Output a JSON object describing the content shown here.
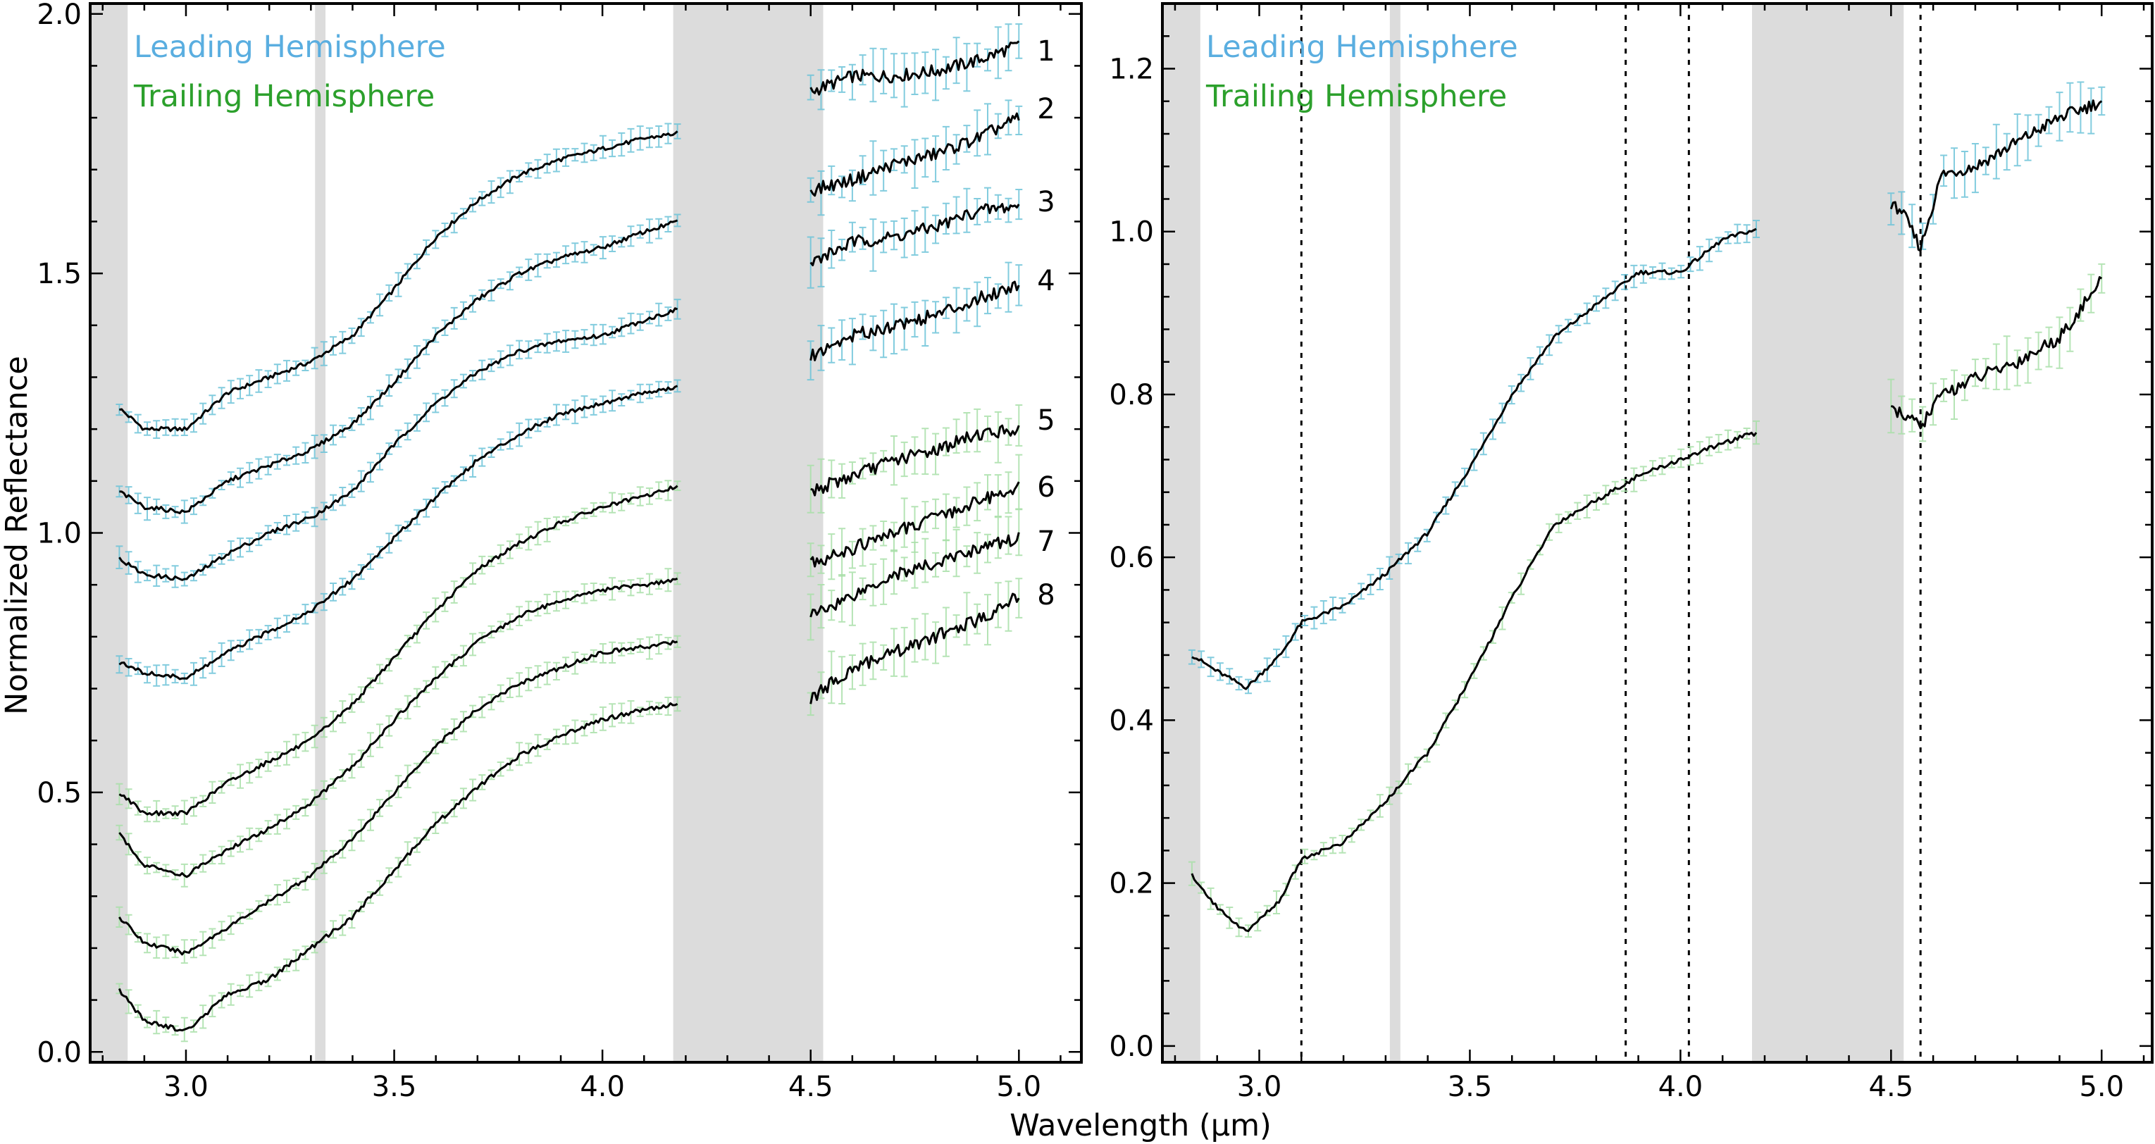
{
  "figure": {
    "xlabel": "Wavelength (μm)",
    "ylabel": "Normalized Reflectance"
  },
  "colors": {
    "leading": "#5aaee0",
    "trailing": "#2ca02c",
    "leading_error": "#6cc3d8",
    "trailing_error": "#a8dfa8",
    "spectrum_line": "#000000",
    "masked_region": "#dcdcdc"
  },
  "chart_data": [
    {
      "type": "line",
      "title": "",
      "xlabel": "Wavelength (μm)",
      "ylabel": "Normalized Reflectance",
      "xlim": [
        2.77,
        5.15
      ],
      "ylim": [
        -0.02,
        2.02
      ],
      "xticks": [
        "3.0",
        "3.5",
        "4.0",
        "4.5",
        "5.0"
      ],
      "yticks": [
        "0.0",
        "0.5",
        "1.0",
        "1.5",
        "2.0"
      ],
      "grid": false,
      "legend_position": "top-left",
      "legend": [
        "Leading Hemisphere",
        "Trailing Hemisphere"
      ],
      "masked_regions": [
        [
          2.77,
          2.86
        ],
        [
          3.31,
          3.335
        ],
        [
          4.17,
          4.53
        ]
      ],
      "series": [
        {
          "name": "1",
          "hemisphere": "leading",
          "x": [
            2.84,
            2.9,
            3.0,
            3.1,
            3.2,
            3.3,
            3.4,
            3.5,
            3.6,
            3.7,
            3.8,
            3.9,
            4.0,
            4.1,
            4.18,
            4.5,
            4.6,
            4.7,
            4.8,
            4.9,
            5.0
          ],
          "y": [
            1.24,
            1.2,
            1.2,
            1.27,
            1.3,
            1.33,
            1.38,
            1.47,
            1.57,
            1.64,
            1.69,
            1.72,
            1.74,
            1.76,
            1.77,
            1.85,
            1.88,
            1.88,
            1.89,
            1.91,
            1.94
          ]
        },
        {
          "name": "2",
          "hemisphere": "leading",
          "x": [
            2.84,
            2.9,
            3.0,
            3.1,
            3.2,
            3.3,
            3.4,
            3.5,
            3.6,
            3.7,
            3.8,
            3.9,
            4.0,
            4.1,
            4.18,
            4.5,
            4.6,
            4.7,
            4.8,
            4.9,
            5.0
          ],
          "y": [
            1.08,
            1.05,
            1.04,
            1.1,
            1.13,
            1.16,
            1.21,
            1.29,
            1.38,
            1.45,
            1.5,
            1.53,
            1.55,
            1.58,
            1.6,
            1.66,
            1.68,
            1.71,
            1.73,
            1.76,
            1.8
          ]
        },
        {
          "name": "3",
          "hemisphere": "leading",
          "x": [
            2.84,
            2.9,
            3.0,
            3.1,
            3.2,
            3.3,
            3.4,
            3.5,
            3.6,
            3.7,
            3.8,
            3.9,
            4.0,
            4.1,
            4.18,
            4.5,
            4.6,
            4.7,
            4.8,
            4.9,
            5.0
          ],
          "y": [
            0.95,
            0.92,
            0.91,
            0.96,
            1.0,
            1.03,
            1.08,
            1.17,
            1.25,
            1.31,
            1.35,
            1.37,
            1.38,
            1.41,
            1.43,
            1.52,
            1.56,
            1.57,
            1.59,
            1.62,
            1.63
          ]
        },
        {
          "name": "4",
          "hemisphere": "leading",
          "x": [
            2.84,
            2.9,
            3.0,
            3.1,
            3.2,
            3.3,
            3.4,
            3.5,
            3.6,
            3.7,
            3.8,
            3.9,
            4.0,
            4.1,
            4.18,
            4.5,
            4.6,
            4.7,
            4.8,
            4.9,
            5.0
          ],
          "y": [
            0.75,
            0.73,
            0.72,
            0.77,
            0.81,
            0.85,
            0.91,
            0.99,
            1.07,
            1.14,
            1.19,
            1.23,
            1.25,
            1.27,
            1.28,
            1.34,
            1.38,
            1.4,
            1.42,
            1.45,
            1.48
          ]
        },
        {
          "name": "5",
          "hemisphere": "trailing",
          "x": [
            2.84,
            2.9,
            3.0,
            3.1,
            3.2,
            3.3,
            3.4,
            3.5,
            3.6,
            3.7,
            3.8,
            3.9,
            4.0,
            4.1,
            4.18,
            4.5,
            4.6,
            4.7,
            4.8,
            4.9,
            5.0
          ],
          "y": [
            0.5,
            0.46,
            0.46,
            0.52,
            0.56,
            0.6,
            0.67,
            0.76,
            0.85,
            0.93,
            0.98,
            1.02,
            1.05,
            1.07,
            1.09,
            1.08,
            1.11,
            1.14,
            1.16,
            1.19,
            1.2
          ]
        },
        {
          "name": "6",
          "hemisphere": "trailing",
          "x": [
            2.84,
            2.9,
            3.0,
            3.1,
            3.2,
            3.3,
            3.4,
            3.5,
            3.6,
            3.7,
            3.8,
            3.9,
            4.0,
            4.1,
            4.18,
            4.5,
            4.6,
            4.7,
            4.8,
            4.9,
            5.0
          ],
          "y": [
            0.42,
            0.36,
            0.34,
            0.39,
            0.43,
            0.48,
            0.55,
            0.64,
            0.72,
            0.79,
            0.84,
            0.87,
            0.89,
            0.9,
            0.91,
            0.94,
            0.97,
            1.0,
            1.03,
            1.06,
            1.09
          ]
        },
        {
          "name": "7",
          "hemisphere": "trailing",
          "x": [
            2.84,
            2.9,
            3.0,
            3.1,
            3.2,
            3.3,
            3.4,
            3.5,
            3.6,
            3.7,
            3.8,
            3.9,
            4.0,
            4.1,
            4.18,
            4.5,
            4.6,
            4.7,
            4.8,
            4.9,
            5.0
          ],
          "y": [
            0.26,
            0.21,
            0.19,
            0.24,
            0.29,
            0.34,
            0.41,
            0.5,
            0.59,
            0.66,
            0.71,
            0.74,
            0.77,
            0.78,
            0.79,
            0.84,
            0.88,
            0.92,
            0.94,
            0.97,
            0.99
          ]
        },
        {
          "name": "8",
          "hemisphere": "trailing",
          "x": [
            2.84,
            2.9,
            3.0,
            3.1,
            3.2,
            3.3,
            3.4,
            3.5,
            3.6,
            3.7,
            3.8,
            3.9,
            4.0,
            4.1,
            4.18,
            4.5,
            4.6,
            4.7,
            4.8,
            4.9,
            5.0
          ],
          "y": [
            0.12,
            0.06,
            0.04,
            0.11,
            0.14,
            0.2,
            0.26,
            0.35,
            0.44,
            0.51,
            0.57,
            0.61,
            0.64,
            0.66,
            0.67,
            0.68,
            0.74,
            0.77,
            0.8,
            0.83,
            0.88
          ]
        }
      ]
    },
    {
      "type": "line",
      "title": "",
      "xlabel": "Wavelength (μm)",
      "ylabel": "",
      "xlim": [
        2.77,
        5.12
      ],
      "ylim": [
        -0.02,
        1.28
      ],
      "xticks": [
        "3.0",
        "3.5",
        "4.0",
        "4.5",
        "5.0"
      ],
      "yticks": [
        "0.0",
        "0.2",
        "0.4",
        "0.6",
        "0.8",
        "1.0",
        "1.2"
      ],
      "grid": false,
      "legend_position": "top-left",
      "legend": [
        "Leading Hemisphere",
        "Trailing Hemisphere"
      ],
      "masked_regions": [
        [
          2.77,
          2.86
        ],
        [
          3.31,
          3.335
        ],
        [
          4.17,
          4.53
        ]
      ],
      "vertical_lines": [
        3.1,
        3.87,
        4.02,
        4.57
      ],
      "series": [
        {
          "name": "Leading Hemisphere",
          "hemisphere": "leading",
          "x": [
            2.84,
            2.9,
            2.97,
            3.05,
            3.1,
            3.2,
            3.3,
            3.4,
            3.5,
            3.6,
            3.7,
            3.8,
            3.9,
            4.0,
            4.1,
            4.16,
            4.52,
            4.57,
            4.62,
            4.7,
            4.8,
            4.9,
            5.0
          ],
          "y": [
            0.48,
            0.46,
            0.44,
            0.48,
            0.52,
            0.54,
            0.58,
            0.63,
            0.71,
            0.8,
            0.87,
            0.91,
            0.95,
            0.95,
            0.99,
            1.0,
            1.03,
            0.98,
            1.07,
            1.08,
            1.11,
            1.14,
            1.16
          ]
        },
        {
          "name": "Trailing Hemisphere",
          "hemisphere": "trailing",
          "x": [
            2.84,
            2.9,
            2.97,
            3.05,
            3.1,
            3.2,
            3.3,
            3.4,
            3.5,
            3.6,
            3.7,
            3.8,
            3.9,
            4.0,
            4.1,
            4.16,
            4.52,
            4.57,
            4.62,
            4.7,
            4.8,
            4.9,
            5.0
          ],
          "y": [
            0.21,
            0.17,
            0.14,
            0.18,
            0.23,
            0.25,
            0.3,
            0.36,
            0.45,
            0.55,
            0.64,
            0.67,
            0.7,
            0.72,
            0.74,
            0.75,
            0.78,
            0.76,
            0.8,
            0.82,
            0.84,
            0.87,
            0.94
          ]
        }
      ]
    }
  ]
}
